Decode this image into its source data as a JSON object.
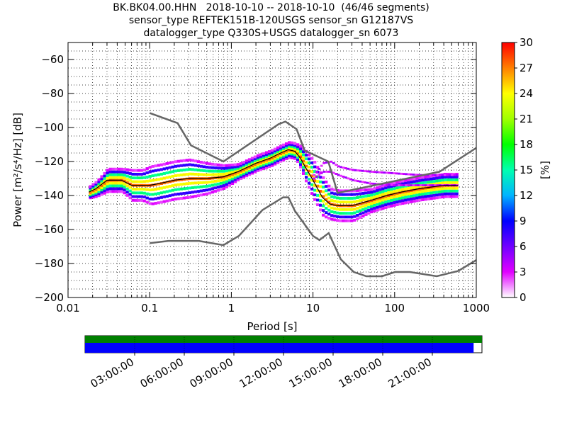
{
  "chart_data": {
    "type": "heatmap",
    "title_lines": [
      "BK.BK04.00.HHN   2018-10-10 -- 2018-10-10  (46/46 segments)",
      "sensor_type REFTEK151B-120USGS sensor_sn G12187VS",
      "datalogger_type Q330S+USGS datalogger_sn 6073"
    ],
    "xlabel": "Period [s]",
    "ylabel": "Power [m²/s⁴/Hz] [dB]",
    "x_scale": "log",
    "xlim": [
      0.01,
      1000
    ],
    "ylim": [
      -200,
      -50
    ],
    "x_ticks": [
      0.01,
      0.1,
      1,
      10,
      100,
      1000
    ],
    "x_tick_labels": [
      "0.01",
      "0.1",
      "1",
      "10",
      "100",
      "1000"
    ],
    "y_ticks": [
      -200,
      -180,
      -160,
      -140,
      -120,
      -100,
      -80,
      -60
    ],
    "y_tick_labels": [
      "−200",
      "−180",
      "−160",
      "−140",
      "−120",
      "−100",
      "−80",
      "−60"
    ],
    "grid": true,
    "colorbar": {
      "label": "[%]",
      "range": [
        0,
        30
      ],
      "ticks": [
        "0",
        "3",
        "6",
        "9",
        "12",
        "15",
        "18",
        "21",
        "24",
        "27",
        "30"
      ],
      "colormap": "pqlx"
    },
    "noise_models": [
      {
        "curve": "NHNM",
        "x": [
          0.1,
          0.22,
          0.32,
          0.8,
          3.8,
          4.6,
          6.3,
          7.9,
          15.4,
          20,
          354.8,
          1000
        ],
        "y": [
          -91.5,
          -97.4,
          -110.5,
          -120.0,
          -98.0,
          -96.5,
          -101.0,
          -113.5,
          -120.0,
          -138.5,
          -126.0,
          -112.0
        ]
      },
      {
        "curve": "NLNM",
        "x": [
          0.1,
          0.17,
          0.4,
          0.8,
          1.24,
          2.4,
          4.3,
          5.0,
          6.0,
          10,
          12,
          15.6,
          21.9,
          31.6,
          45,
          70,
          101,
          154,
          328,
          600,
          1000
        ],
        "y": [
          -168.0,
          -166.7,
          -166.7,
          -169.2,
          -163.7,
          -148.6,
          -141.1,
          -141.1,
          -149.0,
          -163.8,
          -166.2,
          -162.1,
          -177.5,
          -185.0,
          -187.5,
          -187.5,
          -185.0,
          -185.0,
          -187.5,
          -184.4,
          -178.0
        ]
      }
    ],
    "mode": {
      "x": [
        0.018,
        0.022,
        0.03,
        0.045,
        0.06,
        0.08,
        0.1,
        0.13,
        0.2,
        0.3,
        0.5,
        0.8,
        1.2,
        2,
        3,
        4,
        5,
        6,
        7,
        8,
        10,
        13,
        16,
        20,
        30,
        50,
        80,
        120,
        200,
        400,
        600
      ],
      "y": [
        -138,
        -136,
        -131,
        -131,
        -134,
        -134,
        -134,
        -133,
        -131,
        -130,
        -130,
        -129,
        -126,
        -121,
        -118,
        -115,
        -113,
        -114,
        -118,
        -123,
        -131,
        -141,
        -145,
        -146,
        -146,
        -143,
        -140,
        -138,
        -136,
        -134,
        -134
      ]
    },
    "pdf_density": {
      "x": [
        0.018,
        0.022,
        0.03,
        0.045,
        0.06,
        0.08,
        0.1,
        0.13,
        0.2,
        0.3,
        0.5,
        0.8,
        1.2,
        2,
        3,
        4,
        5,
        6,
        7,
        8,
        10,
        13,
        16,
        20,
        30,
        50,
        80,
        120,
        200,
        400,
        600
      ],
      "spread": [
        1.5,
        2,
        3,
        3,
        4,
        4,
        5,
        5,
        5,
        5,
        4,
        3,
        2,
        2,
        2,
        2,
        2,
        2,
        3,
        4,
        5,
        5,
        4,
        4,
        4,
        3,
        3,
        3,
        3,
        3,
        3
      ],
      "peak_percent": 28
    },
    "outlier_ridges": [
      {
        "x": [
          10,
          13,
          16,
          20,
          30,
          50,
          100,
          200,
          400,
          600
        ],
        "y": [
          -128,
          -121,
          -120,
          -123,
          -125,
          -126,
          -127,
          -128,
          -128,
          -128
        ]
      },
      {
        "x": [
          10,
          13,
          16,
          20,
          30,
          50,
          100,
          200,
          400,
          600
        ],
        "y": [
          -130,
          -126,
          -126,
          -128,
          -131,
          -133,
          -134,
          -134,
          -134,
          -134
        ]
      }
    ],
    "time_axis": {
      "tick_labels": [
        "03:00:00",
        "06:00:00",
        "09:00:00",
        "12:00:00",
        "15:00:00",
        "18:00:00",
        "21:00:00"
      ],
      "tick_hours": [
        3,
        6,
        9,
        12,
        15,
        18,
        21
      ],
      "span_hours": 24,
      "available_fraction": 1.0,
      "used_fraction": 0.979,
      "available_color": "#008000",
      "used_color": "#0000ff"
    }
  },
  "colors": {
    "noise_model": "#666666",
    "mode_line": "#000000",
    "grid": "#000000"
  }
}
